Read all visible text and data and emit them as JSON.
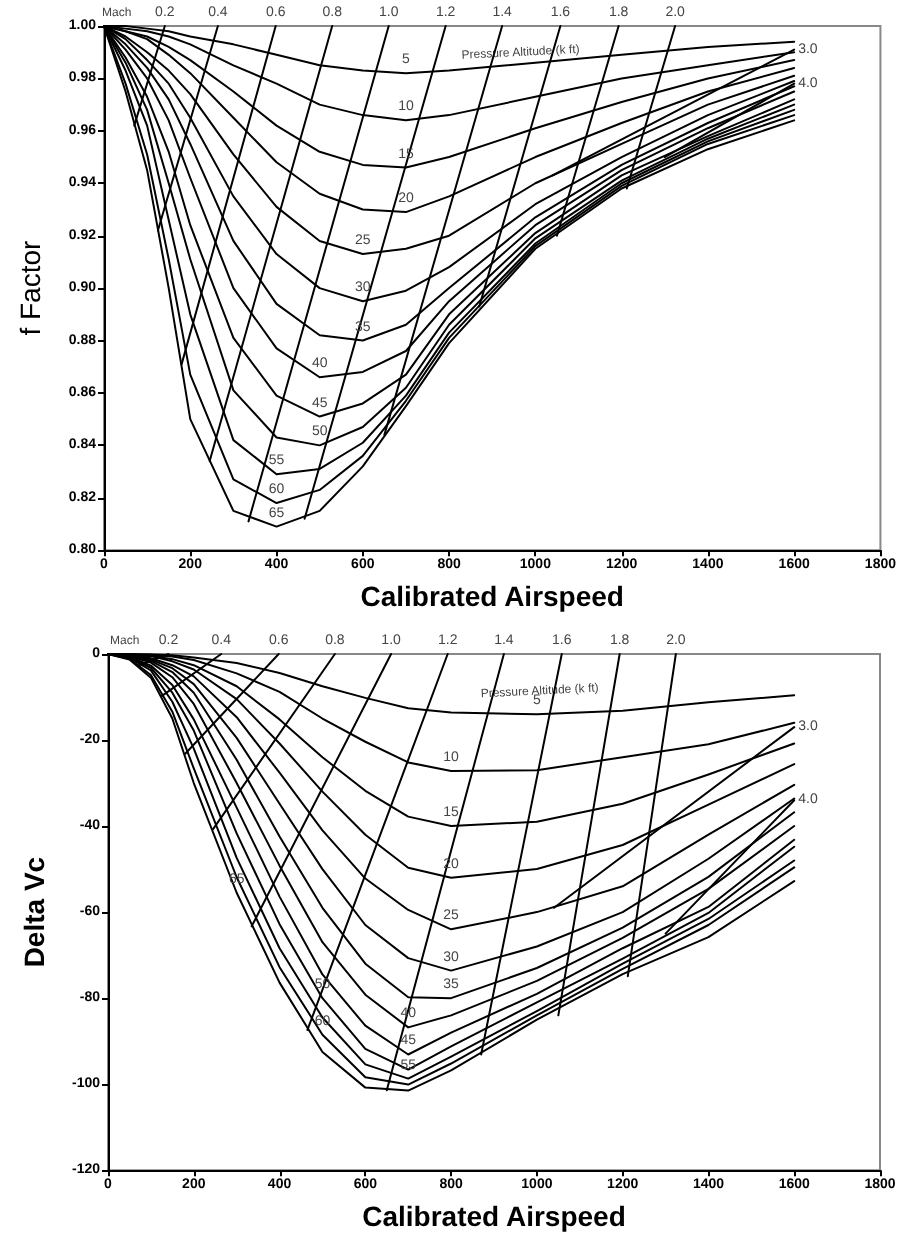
{
  "chart_data": [
    {
      "type": "line",
      "xlabel": "Calibrated Airspeed",
      "ylabel": "f Factor",
      "xlim": [
        0,
        1800
      ],
      "xticks": [
        0,
        200,
        400,
        600,
        800,
        1000,
        1200,
        1400,
        1600,
        1800
      ],
      "ylim": [
        0.8,
        1.0
      ],
      "yticks": [
        {
          "value": 0.8,
          "label": "0.80"
        },
        {
          "value": 0.82,
          "label": "0.82"
        },
        {
          "value": 0.84,
          "label": "0.84"
        },
        {
          "value": 0.86,
          "label": "0.86"
        },
        {
          "value": 0.88,
          "label": "0.88"
        },
        {
          "value": 0.9,
          "label": "0.90"
        },
        {
          "value": 0.92,
          "label": "0.92"
        },
        {
          "value": 0.94,
          "label": "0.94"
        },
        {
          "value": 0.96,
          "label": "0.96"
        },
        {
          "value": 0.98,
          "label": "0.98"
        },
        {
          "value": 1.0,
          "label": "1.00"
        }
      ],
      "marker": "none",
      "line_style": "solid",
      "annotations": [
        "Mach",
        {
          "text": "Pressure Altitude (k ft)",
          "x": 830,
          "y": 0.986
        }
      ],
      "series": [
        {
          "name": "5",
          "color": "#000000",
          "x": [
            0,
            50,
            100,
            150,
            200,
            300,
            400,
            500,
            600,
            700,
            800,
            1000,
            1200,
            1400,
            1600
          ],
          "values": [
            1,
            1,
            0.999,
            0.998,
            0.996,
            0.993,
            0.989,
            0.985,
            0.983,
            0.982,
            0.983,
            0.986,
            0.989,
            0.992,
            0.994
          ]
        },
        {
          "name": "10",
          "color": "#000000",
          "x": [
            0,
            50,
            100,
            150,
            200,
            300,
            400,
            500,
            600,
            700,
            800,
            1000,
            1200,
            1400,
            1600
          ],
          "values": [
            1,
            0.999,
            0.998,
            0.996,
            0.993,
            0.985,
            0.978,
            0.97,
            0.966,
            0.964,
            0.966,
            0.973,
            0.98,
            0.985,
            0.99
          ]
        },
        {
          "name": "15",
          "color": "#000000",
          "x": [
            0,
            50,
            100,
            150,
            200,
            300,
            400,
            500,
            600,
            700,
            800,
            1000,
            1200,
            1400,
            1600
          ],
          "values": [
            1,
            0.998,
            0.996,
            0.992,
            0.987,
            0.975,
            0.962,
            0.952,
            0.947,
            0.946,
            0.95,
            0.961,
            0.971,
            0.98,
            0.987
          ]
        },
        {
          "name": "20",
          "color": "#000000",
          "x": [
            0,
            50,
            100,
            150,
            200,
            300,
            400,
            500,
            600,
            700,
            800,
            1000,
            1200,
            1400,
            1600
          ],
          "values": [
            1,
            0.998,
            0.995,
            0.989,
            0.982,
            0.965,
            0.948,
            0.936,
            0.93,
            0.929,
            0.935,
            0.95,
            0.963,
            0.975,
            0.984
          ]
        },
        {
          "name": "25",
          "color": "#000000",
          "x": [
            0,
            50,
            100,
            150,
            200,
            300,
            400,
            500,
            600,
            700,
            800,
            1000,
            1200,
            1400,
            1600
          ],
          "values": [
            1,
            0.996,
            0.99,
            0.983,
            0.974,
            0.951,
            0.931,
            0.918,
            0.913,
            0.915,
            0.92,
            0.94,
            0.955,
            0.97,
            0.981
          ]
        },
        {
          "name": "30",
          "color": "#000000",
          "x": [
            0,
            50,
            100,
            150,
            200,
            300,
            400,
            500,
            600,
            700,
            800,
            1000,
            1200,
            1400,
            1600
          ],
          "values": [
            1,
            0.995,
            0.987,
            0.978,
            0.965,
            0.935,
            0.913,
            0.9,
            0.895,
            0.899,
            0.908,
            0.932,
            0.95,
            0.966,
            0.979
          ]
        },
        {
          "name": "35",
          "color": "#000000",
          "x": [
            0,
            50,
            100,
            150,
            200,
            300,
            400,
            500,
            600,
            700,
            800,
            1000,
            1200,
            1400,
            1600
          ],
          "values": [
            1,
            0.993,
            0.984,
            0.972,
            0.955,
            0.918,
            0.894,
            0.882,
            0.88,
            0.886,
            0.9,
            0.927,
            0.947,
            0.963,
            0.977
          ]
        },
        {
          "name": "40",
          "color": "#000000",
          "x": [
            0,
            50,
            100,
            150,
            200,
            300,
            400,
            500,
            600,
            700,
            800,
            1000,
            1200,
            1400,
            1600
          ],
          "values": [
            1,
            0.991,
            0.98,
            0.964,
            0.942,
            0.9,
            0.877,
            0.866,
            0.868,
            0.876,
            0.895,
            0.924,
            0.945,
            0.961,
            0.975
          ]
        },
        {
          "name": "45",
          "color": "#000000",
          "x": [
            0,
            50,
            100,
            150,
            200,
            300,
            400,
            500,
            600,
            700,
            800,
            1000,
            1200,
            1400,
            1600
          ],
          "values": [
            1,
            0.988,
            0.973,
            0.952,
            0.924,
            0.881,
            0.859,
            0.851,
            0.856,
            0.867,
            0.89,
            0.921,
            0.943,
            0.958,
            0.972
          ]
        },
        {
          "name": "50",
          "color": "#000000",
          "x": [
            0,
            50,
            100,
            150,
            200,
            300,
            400,
            500,
            600,
            700,
            800,
            1000,
            1200,
            1400,
            1600
          ],
          "values": [
            1,
            0.986,
            0.968,
            0.94,
            0.911,
            0.861,
            0.843,
            0.84,
            0.847,
            0.862,
            0.886,
            0.919,
            0.941,
            0.957,
            0.97
          ]
        },
        {
          "name": "55",
          "color": "#000000",
          "x": [
            0,
            50,
            100,
            150,
            200,
            300,
            400,
            500,
            600,
            700,
            800,
            1000,
            1200,
            1400,
            1600
          ],
          "values": [
            1,
            0.983,
            0.962,
            0.926,
            0.89,
            0.842,
            0.829,
            0.831,
            0.841,
            0.859,
            0.883,
            0.917,
            0.94,
            0.956,
            0.968
          ]
        },
        {
          "name": "60",
          "color": "#000000",
          "x": [
            0,
            50,
            100,
            150,
            200,
            300,
            400,
            500,
            600,
            700,
            800,
            1000,
            1200,
            1400,
            1600
          ],
          "values": [
            1,
            0.978,
            0.951,
            0.911,
            0.867,
            0.827,
            0.818,
            0.823,
            0.836,
            0.857,
            0.881,
            0.916,
            0.939,
            0.955,
            0.966
          ]
        },
        {
          "name": "65",
          "color": "#000000",
          "x": [
            0,
            50,
            100,
            150,
            200,
            300,
            400,
            500,
            600,
            700,
            800,
            1000,
            1200,
            1400,
            1600
          ],
          "values": [
            1,
            0.975,
            0.945,
            0.9,
            0.85,
            0.815,
            0.809,
            0.815,
            0.832,
            0.855,
            0.879,
            0.915,
            0.938,
            0.953,
            0.964
          ]
        },
        {
          "name": "0.2",
          "color": "#000000",
          "x": [
            141,
            70
          ],
          "values": [
            1,
            0.962
          ]
        },
        {
          "name": "0.4",
          "color": "#000000",
          "x": [
            264,
            125
          ],
          "values": [
            1,
            0.922
          ]
        },
        {
          "name": "0.6",
          "color": "#000000",
          "x": [
            398,
            180
          ],
          "values": [
            1,
            0.871
          ]
        },
        {
          "name": "0.8",
          "color": "#000000",
          "x": [
            529,
            245
          ],
          "values": [
            1,
            0.834
          ]
        },
        {
          "name": "1.0",
          "color": "#000000",
          "x": [
            660,
            335
          ],
          "values": [
            1,
            0.811
          ]
        },
        {
          "name": "1.2",
          "color": "#000000",
          "x": [
            792,
            465
          ],
          "values": [
            1,
            0.812
          ]
        },
        {
          "name": "1.4",
          "color": "#000000",
          "x": [
            923,
            650
          ],
          "values": [
            1,
            0.844
          ]
        },
        {
          "name": "1.6",
          "color": "#000000",
          "x": [
            1058,
            870
          ],
          "values": [
            1,
            0.893
          ]
        },
        {
          "name": "1.8",
          "color": "#000000",
          "x": [
            1193,
            1050
          ],
          "values": [
            1,
            0.92
          ]
        },
        {
          "name": "2.0",
          "color": "#000000",
          "x": [
            1324,
            1212
          ],
          "values": [
            1,
            0.938
          ]
        },
        {
          "name": "3.0",
          "color": "#000000",
          "x": [
            1600,
            1040
          ],
          "values": [
            0.991,
            0.943
          ]
        },
        {
          "name": "4.0",
          "color": "#000000",
          "x": [
            1600,
            1300
          ],
          "values": [
            0.978,
            0.95
          ]
        }
      ]
    },
    {
      "type": "line",
      "xlabel": "Calibrated Airspeed",
      "ylabel": "Delta Vc",
      "xlim": [
        0,
        1800
      ],
      "xticks": [
        0,
        200,
        400,
        600,
        800,
        1000,
        1200,
        1400,
        1600,
        1800
      ],
      "ylim": [
        -120,
        0
      ],
      "yticks": [
        -120,
        -100,
        -80,
        -60,
        -40,
        -20,
        0
      ],
      "marker": "none",
      "line_style": "solid",
      "annotations": [
        "Mach",
        {
          "text": "Pressure Altitude (k ft)",
          "x": 870,
          "y": -11
        }
      ],
      "series": [
        {
          "name": "5",
          "color": "#000000",
          "x": [
            0,
            50,
            100,
            150,
            200,
            300,
            400,
            500,
            600,
            700,
            800,
            1000,
            1200,
            1400,
            1600
          ],
          "values": [
            0,
            0,
            -0.1,
            -0.3,
            -0.8,
            -2.1,
            -4.4,
            -7.5,
            -10.2,
            -12.6,
            -13.6,
            -14,
            -13.2,
            -11.2,
            -9.6
          ]
        },
        {
          "name": "10",
          "color": "#000000",
          "x": [
            0,
            50,
            100,
            150,
            200,
            300,
            400,
            500,
            600,
            700,
            800,
            1000,
            1200,
            1400,
            1600
          ],
          "values": [
            0,
            -0.1,
            -0.2,
            -0.6,
            -1.4,
            -4.5,
            -8.8,
            -15,
            -20.4,
            -25.2,
            -27.2,
            -27,
            -24,
            -21,
            -16
          ]
        },
        {
          "name": "15",
          "color": "#000000",
          "x": [
            0,
            50,
            100,
            150,
            200,
            300,
            400,
            500,
            600,
            700,
            800,
            1000,
            1200,
            1400,
            1600
          ],
          "values": [
            0,
            -0.1,
            -0.4,
            -1.2,
            -2.6,
            -7.5,
            -15.2,
            -24,
            -31.8,
            -37.8,
            -40,
            -39,
            -34.8,
            -28,
            -20.8
          ]
        },
        {
          "name": "20",
          "color": "#000000",
          "x": [
            0,
            50,
            100,
            150,
            200,
            300,
            400,
            500,
            600,
            700,
            800,
            1000,
            1200,
            1400,
            1600
          ],
          "values": [
            0,
            -0.1,
            -0.5,
            -1.7,
            -3.6,
            -10.5,
            -20.8,
            -32,
            -42,
            -49.7,
            -52,
            -50,
            -44.4,
            -35,
            -25.6
          ]
        },
        {
          "name": "25",
          "color": "#000000",
          "x": [
            0,
            50,
            100,
            150,
            200,
            300,
            400,
            500,
            600,
            700,
            800,
            1000,
            1200,
            1400,
            1600
          ],
          "values": [
            0,
            -0.2,
            -1,
            -2.6,
            -5.2,
            -14.7,
            -27.6,
            -41,
            -52.2,
            -59.5,
            -64,
            -60,
            -54,
            -42,
            -30.4
          ]
        },
        {
          "name": "30",
          "color": "#000000",
          "x": [
            0,
            50,
            100,
            150,
            200,
            300,
            400,
            500,
            600,
            700,
            800,
            1000,
            1200,
            1400,
            1600
          ],
          "values": [
            0,
            -0.3,
            -1.3,
            -3.3,
            -7,
            -19.5,
            -34.8,
            -50,
            -63,
            -70.7,
            -73.6,
            -68,
            -60,
            -47.6,
            -33.6
          ]
        },
        {
          "name": "35",
          "color": "#000000",
          "x": [
            0,
            50,
            100,
            150,
            200,
            300,
            400,
            500,
            600,
            700,
            800,
            1000,
            1200,
            1400,
            1600
          ],
          "values": [
            0,
            -0.4,
            -1.6,
            -4.2,
            -9,
            -24.6,
            -42.4,
            -59,
            -72,
            -79.8,
            -80,
            -73,
            -63.6,
            -51.8,
            -36.8
          ]
        },
        {
          "name": "40",
          "color": "#000000",
          "x": [
            0,
            50,
            100,
            150,
            200,
            300,
            400,
            500,
            600,
            700,
            800,
            1000,
            1200,
            1400,
            1600
          ],
          "values": [
            0,
            -0.5,
            -2,
            -5.4,
            -11.6,
            -30,
            -49.2,
            -67,
            -79.2,
            -86.8,
            -84,
            -76,
            -66,
            -54.6,
            -40
          ]
        },
        {
          "name": "45",
          "color": "#000000",
          "x": [
            0,
            50,
            100,
            150,
            200,
            300,
            400,
            500,
            600,
            700,
            800,
            1000,
            1200,
            1400,
            1600
          ],
          "values": [
            0,
            -0.6,
            -2.7,
            -7.2,
            -15.2,
            -35.7,
            -56.4,
            -74.5,
            -86.4,
            -93.1,
            -88,
            -79,
            -68.4,
            -58.8,
            -43.2
          ]
        },
        {
          "name": "50",
          "color": "#000000",
          "x": [
            0,
            50,
            100,
            150,
            200,
            300,
            400,
            500,
            600,
            700,
            800,
            1000,
            1200,
            1400,
            1600
          ],
          "values": [
            0,
            -0.7,
            -3.2,
            -9,
            -17.8,
            -41.7,
            -62.8,
            -80,
            -91.8,
            -96.6,
            -91.2,
            -81,
            -70.8,
            -60.2,
            -44.8
          ]
        },
        {
          "name": "55",
          "color": "#000000",
          "x": [
            0,
            50,
            100,
            150,
            200,
            300,
            400,
            500,
            600,
            700,
            800,
            1000,
            1200,
            1400,
            1600
          ],
          "values": [
            0,
            -0.9,
            -3.8,
            -11.1,
            -22,
            -47.4,
            -68.4,
            -84.5,
            -95.4,
            -98.7,
            -93.6,
            -83,
            -72,
            -61.6,
            -48
          ]
        },
        {
          "name": "60",
          "color": "#000000",
          "x": [
            0,
            50,
            100,
            150,
            200,
            300,
            400,
            500,
            600,
            700,
            800,
            1000,
            1200,
            1400,
            1600
          ],
          "values": [
            0,
            -1.1,
            -4.9,
            -13.4,
            -26.6,
            -51.9,
            -72.8,
            -88.5,
            -98.4,
            -100.1,
            -95.2,
            -84,
            -73.2,
            -63,
            -49.6
          ]
        },
        {
          "name": "65",
          "color": "#000000",
          "x": [
            0,
            50,
            100,
            150,
            200,
            300,
            400,
            500,
            600,
            700,
            800,
            1000,
            1200,
            1400,
            1600
          ],
          "values": [
            0,
            -1.3,
            -5.5,
            -15,
            -30,
            -55.5,
            -76.4,
            -92.5,
            -100.8,
            -101.5,
            -96.8,
            -85,
            -74.4,
            -65.8,
            -52.8
          ]
        },
        {
          "name": "0.2",
          "color": "#000000",
          "x": [
            141,
            70
          ],
          "values": [
            0,
            -2.7
          ]
        },
        {
          "name": "0.4",
          "color": "#000000",
          "x": [
            264,
            125
          ],
          "values": [
            0,
            -9.8
          ]
        },
        {
          "name": "0.6",
          "color": "#000000",
          "x": [
            398,
            180
          ],
          "values": [
            0,
            -23.2
          ]
        },
        {
          "name": "0.8",
          "color": "#000000",
          "x": [
            529,
            245
          ],
          "values": [
            0,
            -40.7
          ]
        },
        {
          "name": "1.0",
          "color": "#000000",
          "x": [
            660,
            335
          ],
          "values": [
            0,
            -63.3
          ]
        },
        {
          "name": "1.2",
          "color": "#000000",
          "x": [
            792,
            465
          ],
          "values": [
            0,
            -87.4
          ]
        },
        {
          "name": "1.4",
          "color": "#000000",
          "x": [
            923,
            650
          ],
          "values": [
            0,
            -101.4
          ]
        },
        {
          "name": "1.6",
          "color": "#000000",
          "x": [
            1058,
            870
          ],
          "values": [
            0,
            -93.1
          ]
        },
        {
          "name": "1.8",
          "color": "#000000",
          "x": [
            1193,
            1050
          ],
          "values": [
            0,
            -84
          ]
        },
        {
          "name": "2.0",
          "color": "#000000",
          "x": [
            1324,
            1212
          ],
          "values": [
            0,
            -74.9
          ]
        },
        {
          "name": "3.0",
          "color": "#000000",
          "x": [
            1600,
            1040
          ],
          "values": [
            -17,
            -59
          ]
        },
        {
          "name": "4.0",
          "color": "#000000",
          "x": [
            1600,
            1300
          ],
          "values": [
            -34,
            -65
          ]
        }
      ]
    }
  ]
}
